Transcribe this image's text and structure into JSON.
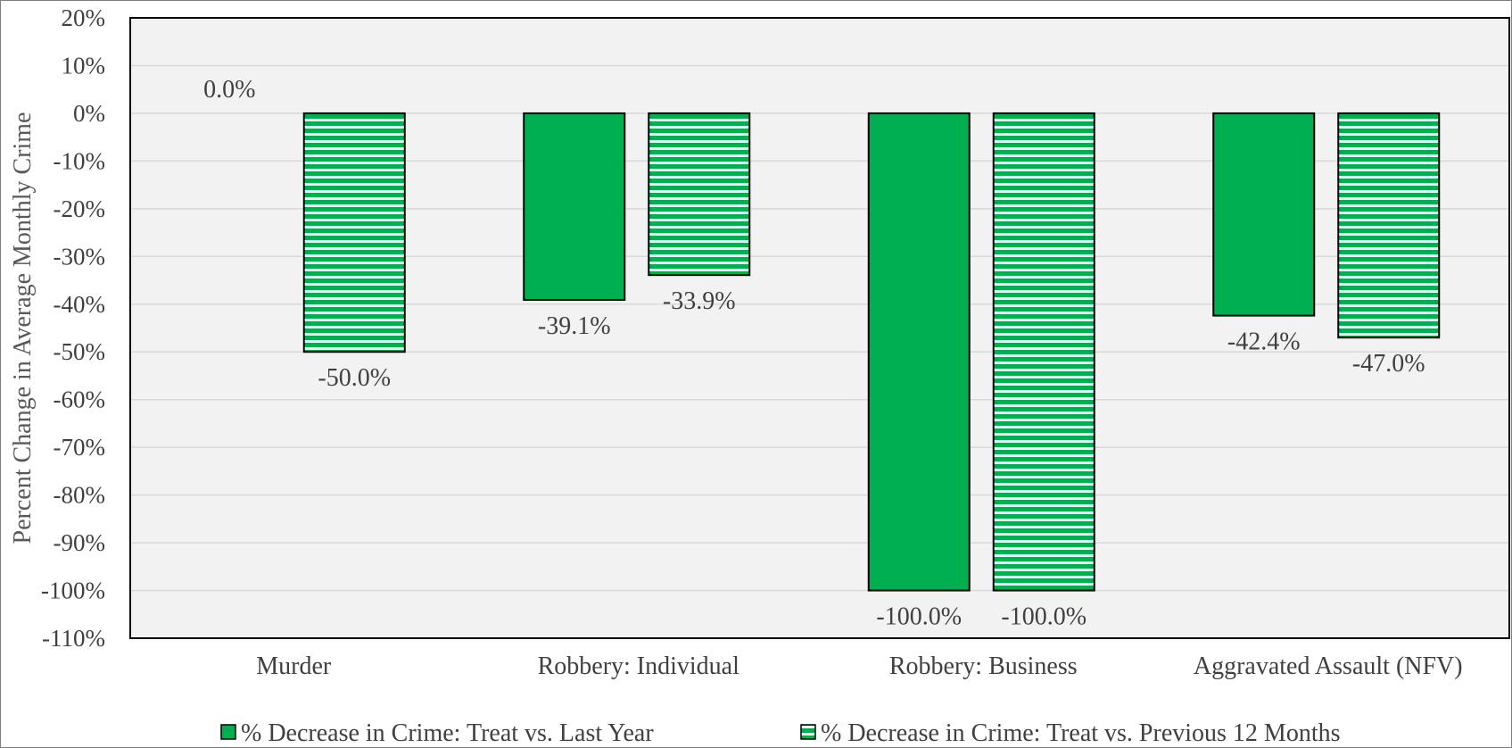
{
  "chart_data": {
    "type": "bar",
    "categories": [
      "Murder",
      "Robbery: Individual",
      "Robbery: Business",
      "Aggravated Assault (NFV)"
    ],
    "series": [
      {
        "name": "% Decrease in Crime: Treat vs. Last Year",
        "values": [
          0.0,
          -39.1,
          -100.0,
          -42.4
        ],
        "labels": [
          "0.0%",
          "-39.1%",
          "-100.0%",
          "-42.4%"
        ],
        "color": "#00b050",
        "pattern": "solid"
      },
      {
        "name": "% Decrease in Crime: Treat vs. Previous 12 Months",
        "values": [
          -50.0,
          -33.9,
          -100.0,
          -47.0
        ],
        "labels": [
          "-50.0%",
          "-33.9%",
          "-100.0%",
          "-47.0%"
        ],
        "color": "#00b050",
        "pattern": "horizontal-stripes"
      }
    ],
    "ylabel": "Percent Change in Average Monthly Crime",
    "ylim": [
      -110,
      20
    ],
    "ytick_step": 10,
    "ytick_format": "%",
    "grid": true,
    "plot_background": "#f2f2f2",
    "legend_position": "bottom"
  }
}
